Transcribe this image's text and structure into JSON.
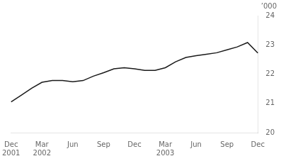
{
  "chart_data": {
    "type": "line",
    "ylabel": "’000",
    "categories": [
      "Dec\n2001",
      null,
      null,
      "Mar\n2002",
      null,
      null,
      "Jun",
      null,
      null,
      "Sep",
      null,
      null,
      "Dec",
      null,
      null,
      "Mar\n2003",
      null,
      null,
      "Jun",
      null,
      null,
      "Sep",
      null,
      null,
      "Dec"
    ],
    "values": [
      21.05,
      21.28,
      21.52,
      21.72,
      21.78,
      21.78,
      21.74,
      21.78,
      21.93,
      22.05,
      22.18,
      22.22,
      22.18,
      22.13,
      22.13,
      22.22,
      22.42,
      22.57,
      22.63,
      22.68,
      22.73,
      22.83,
      22.93,
      23.08,
      22.72
    ],
    "color": "#1a1a1a",
    "ylim": [
      20,
      24
    ],
    "yticks": [
      20,
      21,
      22,
      23,
      24
    ],
    "grid": false
  }
}
